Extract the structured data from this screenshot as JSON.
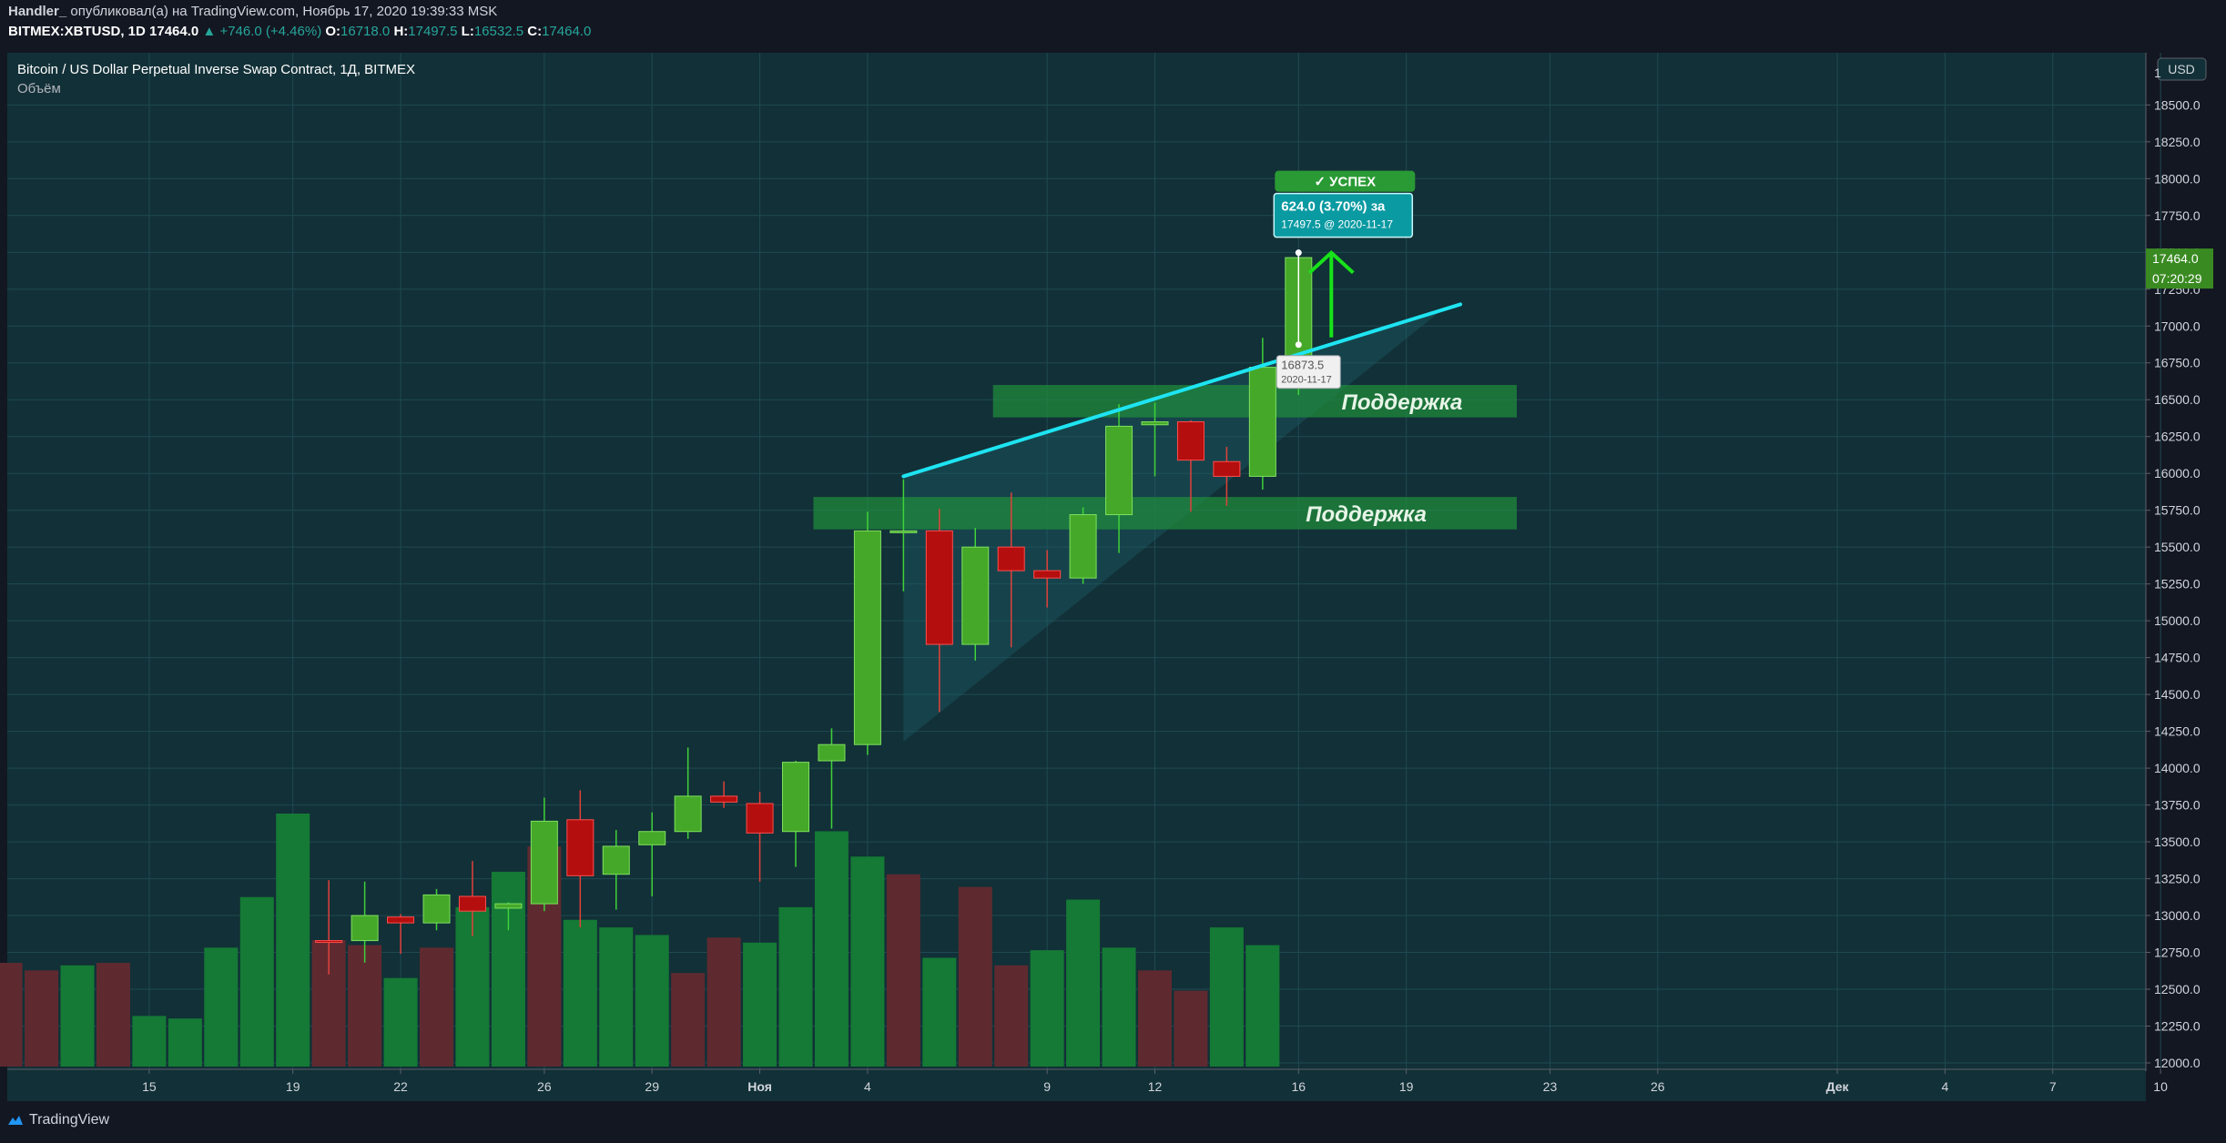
{
  "header": {
    "author": "Handler_",
    "published": "опубликовал(а) на TradingView.com, Ноябрь 17, 2020 19:39:33 MSK",
    "symbol": "BITMEX:XBTUSD, 1D",
    "last": "17464.0",
    "change": "+746.0 (+4.46%)",
    "o_label": "O:",
    "o": "16718.0",
    "h_label": "H:",
    "h": "17497.5",
    "l_label": "L:",
    "l": "16532.5",
    "c_label": "C:",
    "c": "17464.0"
  },
  "legend": {
    "title": "Bitcoin / US Dollar Perpetual Inverse Swap Contract, 1Д, BITMEX",
    "volume": "Объём"
  },
  "price_scale": {
    "currency": "USD",
    "top_partial": "1",
    "last_price": "17464.0",
    "countdown": "07:20:29"
  },
  "annotations": {
    "support_upper": "Поддержка",
    "support_lower": "Поддержка",
    "success_badge": "✓ УСПЕХ",
    "target_change": "624.0 (3.70%) за",
    "target_detail": "17497.5 @ 2020-11-17",
    "entry_price": "16873.5",
    "entry_date": "2020-11-17"
  },
  "footer": {
    "brand": "TradingView"
  },
  "colors": {
    "background": "#123037",
    "up_candle": "#45a828",
    "down_candle": "#b40e0e",
    "up_volume": "#147a35",
    "down_volume": "#5e2a30",
    "trendline": "#1ee4f2",
    "support_zone": "#1f8a3c",
    "arrow": "#18e21a"
  },
  "chart_data": {
    "type": "candlestick",
    "y_axis": {
      "range": [
        12000,
        19000
      ],
      "ticks": [
        "18500.0",
        "18250.0",
        "18000.0",
        "17750.0",
        "17500.0",
        "17250.0",
        "17000.0",
        "16750.0",
        "16500.0",
        "16250.0",
        "16000.0",
        "15750.0",
        "15500.0",
        "15250.0",
        "15000.0",
        "14750.0",
        "14500.0",
        "14250.0",
        "14000.0",
        "13750.0",
        "13500.0",
        "13250.0",
        "13000.0",
        "12750.0",
        "12500.0",
        "12250.0",
        "12000.0"
      ]
    },
    "x_axis": {
      "ticks": [
        {
          "label": "15",
          "idx": 2
        },
        {
          "label": "19",
          "idx": 6
        },
        {
          "label": "22",
          "idx": 9
        },
        {
          "label": "26",
          "idx": 13
        },
        {
          "label": "29",
          "idx": 16
        },
        {
          "label": "Ноя",
          "idx": 19
        },
        {
          "label": "4",
          "idx": 22
        },
        {
          "label": "9",
          "idx": 27
        },
        {
          "label": "12",
          "idx": 30
        },
        {
          "label": "16",
          "idx": 34
        },
        {
          "label": "19",
          "idx": 37
        },
        {
          "label": "23",
          "idx": 41
        },
        {
          "label": "26",
          "idx": 44
        },
        {
          "label": "Дек",
          "idx": 49
        },
        {
          "label": "4",
          "idx": 52
        },
        {
          "label": "7",
          "idx": 55
        },
        {
          "label": "10",
          "idx": 58
        }
      ]
    },
    "candles": [
      {
        "idx": 7,
        "o": 12830,
        "h": 13240,
        "l": 12600,
        "c": 12820
      },
      {
        "idx": 8,
        "o": 12830,
        "h": 13230,
        "l": 12680,
        "c": 13000
      },
      {
        "idx": 9,
        "o": 12990,
        "h": 13010,
        "l": 12740,
        "c": 12950
      },
      {
        "idx": 10,
        "o": 12950,
        "h": 13180,
        "l": 12900,
        "c": 13140
      },
      {
        "idx": 11,
        "o": 13130,
        "h": 13370,
        "l": 12860,
        "c": 13030
      },
      {
        "idx": 12,
        "o": 13050,
        "h": 13090,
        "l": 12900,
        "c": 13080
      },
      {
        "idx": 13,
        "o": 13080,
        "h": 13800,
        "l": 13030,
        "c": 13640
      },
      {
        "idx": 14,
        "o": 13650,
        "h": 13850,
        "l": 12920,
        "c": 13270
      },
      {
        "idx": 15,
        "o": 13280,
        "h": 13580,
        "l": 13040,
        "c": 13470
      },
      {
        "idx": 16,
        "o": 13480,
        "h": 13700,
        "l": 13130,
        "c": 13570
      },
      {
        "idx": 17,
        "o": 13570,
        "h": 14140,
        "l": 13520,
        "c": 13810
      },
      {
        "idx": 18,
        "o": 13810,
        "h": 13910,
        "l": 13730,
        "c": 13770
      },
      {
        "idx": 19,
        "o": 13760,
        "h": 13840,
        "l": 13230,
        "c": 13560
      },
      {
        "idx": 20,
        "o": 13570,
        "h": 14050,
        "l": 13330,
        "c": 14040
      },
      {
        "idx": 21,
        "o": 14050,
        "h": 14270,
        "l": 13590,
        "c": 14160
      },
      {
        "idx": 22,
        "o": 14160,
        "h": 15740,
        "l": 14090,
        "c": 15610
      },
      {
        "idx": 23,
        "o": 15610,
        "h": 15960,
        "l": 15200,
        "c": 15610
      },
      {
        "idx": 24,
        "o": 15610,
        "h": 15760,
        "l": 14380,
        "c": 14840
      },
      {
        "idx": 25,
        "o": 14840,
        "h": 15630,
        "l": 14730,
        "c": 15500
      },
      {
        "idx": 26,
        "o": 15500,
        "h": 15870,
        "l": 14820,
        "c": 15340
      },
      {
        "idx": 27,
        "o": 15340,
        "h": 15480,
        "l": 15090,
        "c": 15290
      },
      {
        "idx": 28,
        "o": 15290,
        "h": 15770,
        "l": 15250,
        "c": 15720
      },
      {
        "idx": 29,
        "o": 15720,
        "h": 16470,
        "l": 15460,
        "c": 16320
      },
      {
        "idx": 30,
        "o": 16330,
        "h": 16480,
        "l": 15980,
        "c": 16350
      },
      {
        "idx": 31,
        "o": 16350,
        "h": 16360,
        "l": 15740,
        "c": 16090
      },
      {
        "idx": 32,
        "o": 16080,
        "h": 16180,
        "l": 15780,
        "c": 15980
      },
      {
        "idx": 33,
        "o": 15980,
        "h": 16920,
        "l": 15890,
        "c": 16720
      },
      {
        "idx": 34,
        "o": 16718,
        "h": 17497.5,
        "l": 16532.5,
        "c": 17464
      }
    ],
    "volume": [
      {
        "idx": -2,
        "up": false,
        "rel": 0.41
      },
      {
        "idx": -1,
        "up": false,
        "rel": 0.38
      },
      {
        "idx": 0,
        "up": true,
        "rel": 0.4
      },
      {
        "idx": 1,
        "up": false,
        "rel": 0.41
      },
      {
        "idx": 2,
        "up": true,
        "rel": 0.2
      },
      {
        "idx": 3,
        "up": true,
        "rel": 0.19
      },
      {
        "idx": 4,
        "up": true,
        "rel": 0.47
      },
      {
        "idx": 5,
        "up": true,
        "rel": 0.67
      },
      {
        "idx": 6,
        "up": true,
        "rel": 1.0
      },
      {
        "idx": 7,
        "up": false,
        "rel": 0.5
      },
      {
        "idx": 8,
        "up": false,
        "rel": 0.48
      },
      {
        "idx": 9,
        "up": true,
        "rel": 0.35
      },
      {
        "idx": 10,
        "up": false,
        "rel": 0.47
      },
      {
        "idx": 11,
        "up": true,
        "rel": 0.63
      },
      {
        "idx": 12,
        "up": true,
        "rel": 0.77
      },
      {
        "idx": 13,
        "up": false,
        "rel": 0.87
      },
      {
        "idx": 14,
        "up": true,
        "rel": 0.58
      },
      {
        "idx": 15,
        "up": true,
        "rel": 0.55
      },
      {
        "idx": 16,
        "up": true,
        "rel": 0.52
      },
      {
        "idx": 17,
        "up": false,
        "rel": 0.37
      },
      {
        "idx": 18,
        "up": false,
        "rel": 0.51
      },
      {
        "idx": 19,
        "up": true,
        "rel": 0.49
      },
      {
        "idx": 20,
        "up": true,
        "rel": 0.63
      },
      {
        "idx": 21,
        "up": true,
        "rel": 0.93
      },
      {
        "idx": 22,
        "up": true,
        "rel": 0.83
      },
      {
        "idx": 23,
        "up": false,
        "rel": 0.76
      },
      {
        "idx": 24,
        "up": true,
        "rel": 0.43
      },
      {
        "idx": 25,
        "up": false,
        "rel": 0.71
      },
      {
        "idx": 26,
        "up": false,
        "rel": 0.4
      },
      {
        "idx": 27,
        "up": true,
        "rel": 0.46
      },
      {
        "idx": 28,
        "up": true,
        "rel": 0.66
      },
      {
        "idx": 29,
        "up": true,
        "rel": 0.47
      },
      {
        "idx": 30,
        "up": false,
        "rel": 0.38
      },
      {
        "idx": 31,
        "up": false,
        "rel": 0.3
      },
      {
        "idx": 32,
        "up": true,
        "rel": 0.55
      },
      {
        "idx": 33,
        "up": true,
        "rel": 0.48
      }
    ],
    "drawings": {
      "support_zone_upper": {
        "from_idx": 26,
        "to_idx": 40,
        "y_low": 16380,
        "y_high": 16600
      },
      "support_zone_lower": {
        "from_idx": 21,
        "to_idx": 40,
        "y_low": 15620,
        "y_high": 15840
      },
      "trendline": {
        "x1_idx": 23,
        "y1": 15980,
        "x2_idx": 38,
        "y2": 17110
      },
      "triangle": [
        {
          "idx": 23,
          "y": 15980
        },
        {
          "idx": 38,
          "y": 17110
        },
        {
          "idx": 23,
          "y": 14180
        }
      ],
      "target_idx": 34,
      "target_price": 17497.5,
      "entry_price": 16873.5
    }
  }
}
